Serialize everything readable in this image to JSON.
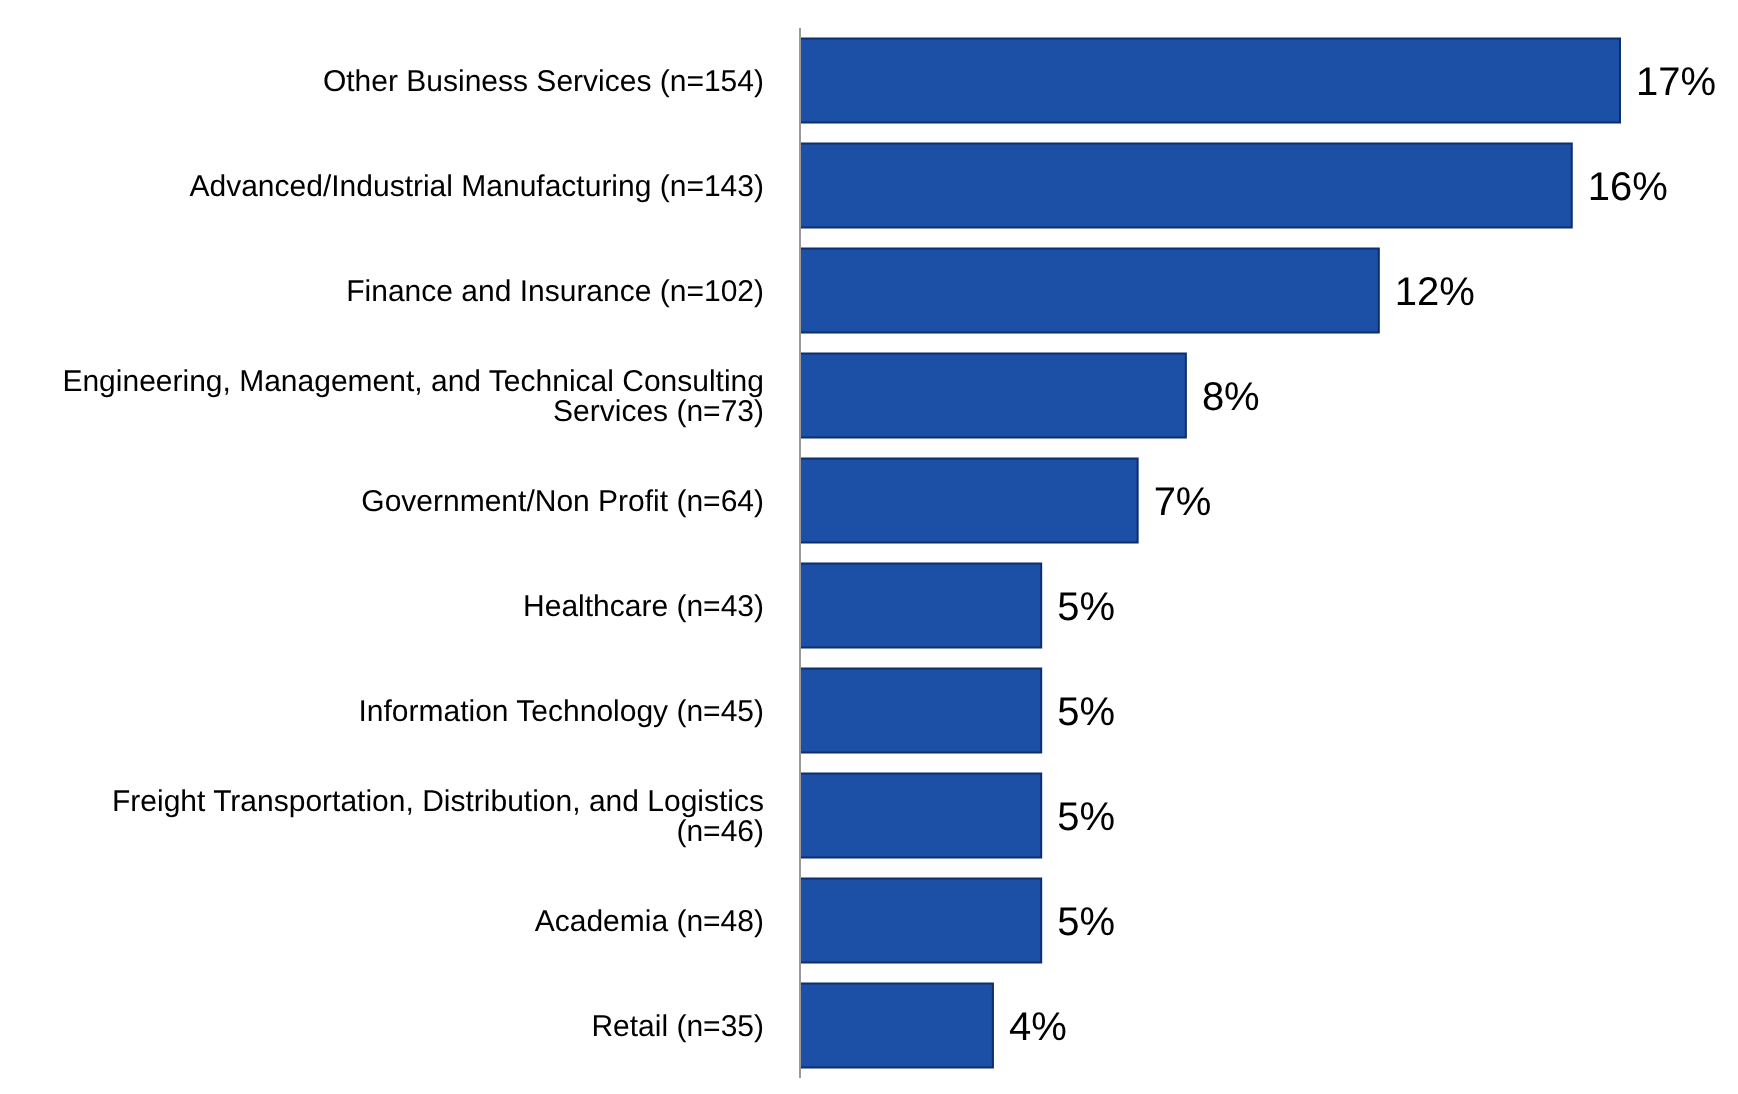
{
  "chart_data": {
    "type": "bar",
    "orientation": "horizontal",
    "categories": [
      "Other Business Services (n=154)",
      "Advanced/Industrial Manufacturing (n=143)",
      "Finance and Insurance (n=102)",
      "Engineering, Management, and Technical Consulting Services (n=73)",
      "Government/Non Profit (n=64)",
      "Healthcare (n=43)",
      "Information Technology (n=45)",
      "Freight Transportation, Distribution, and Logistics (n=46)",
      "Academia (n=48)",
      "Retail (n=35)"
    ],
    "values": [
      17,
      16,
      12,
      8,
      7,
      5,
      5,
      5,
      5,
      4
    ],
    "value_labels": [
      "17%",
      "16%",
      "12%",
      "8%",
      "7%",
      "5%",
      "5%",
      "5%",
      "5%",
      "4%"
    ],
    "color": "#1c4fa6",
    "grid": false,
    "legend": false
  }
}
